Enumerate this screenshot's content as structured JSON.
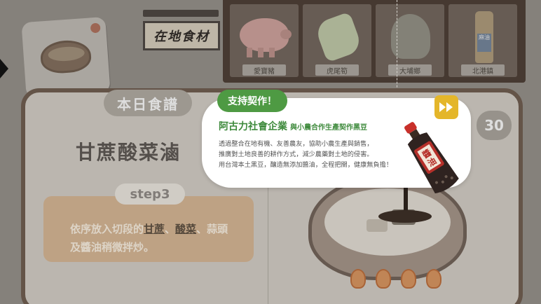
{
  "scene": {
    "sign_text": "在地食材",
    "shelf_items": [
      {
        "icon": "pig-icon",
        "label": "愛寶豬"
      },
      {
        "icon": "vegetable-icon",
        "label": "虎尾筍"
      },
      {
        "icon": "mustard-greens-icon",
        "label": "大埔鄉"
      },
      {
        "icon": "oil-bottle-icon",
        "label": "北港鎮"
      }
    ],
    "bottle_label": "麻油",
    "today_badge": "本日食譜",
    "recipe_title": "甘蔗酸菜滷",
    "step_label": "step3",
    "instruction": {
      "prefix": "依序放入切段的",
      "item1": "甘蔗",
      "sep": "、",
      "item2": "酸菜",
      "suffix": "、蒜頭及醬油稍微拌炒。"
    },
    "counter": "30"
  },
  "popup": {
    "pill": "支持契作！",
    "brand": "阿古力社會企業",
    "brand_sub": "與小農合作生產契作黑豆",
    "desc": [
      "透過整合在地有機、友善農友，協助小農生產與銷售，",
      "推廣對土地良善的耕作方式，減少農藥對土地的侵害。",
      "用台灣本土黑豆，釀造無添加醬油，全程把關，健康無負擔！"
    ],
    "soy_label": "醬油"
  },
  "colors": {
    "accent_green": "#4e9a43",
    "ff_button": "#e4b62a",
    "panel_border": "#6b5a4d"
  }
}
